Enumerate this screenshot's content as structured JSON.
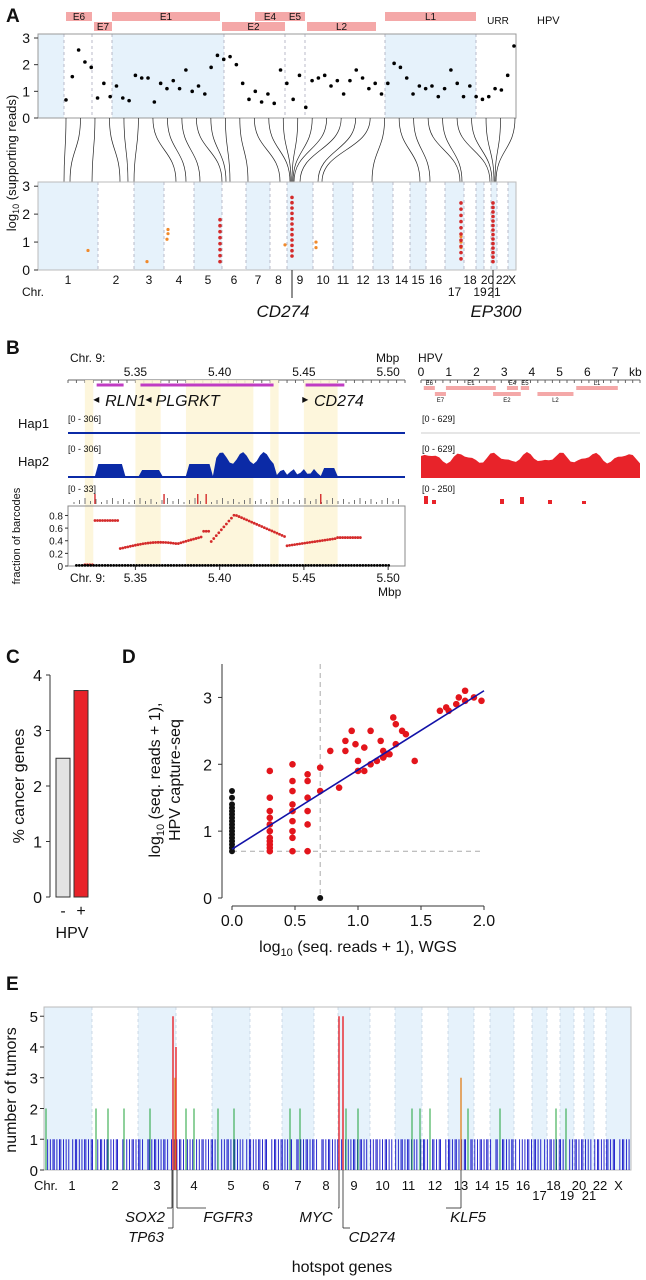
{
  "panels": {
    "a": "A",
    "b": "B",
    "c": "C",
    "d": "D",
    "e": "E"
  },
  "panel_a": {
    "hpv_label": "HPV",
    "hpv_genes": [
      {
        "name": "E6",
        "row": 0
      },
      {
        "name": "E7",
        "row": 1
      },
      {
        "name": "E1",
        "row": 0
      },
      {
        "name": "E4",
        "row": 0
      },
      {
        "name": "E2",
        "row": 1
      },
      {
        "name": "E5",
        "row": 0
      },
      {
        "name": "L2",
        "row": 1
      },
      {
        "name": "L1",
        "row": 0
      },
      {
        "name": "URR",
        "row": 1
      }
    ],
    "ylabel": "log10 (supporting reads)",
    "yticks": [
      "0",
      "1",
      "2",
      "3"
    ],
    "chr_prefix": "Chr.",
    "chromosomes": [
      "1",
      "2",
      "3",
      "4",
      "5",
      "6",
      "7",
      "8",
      "9",
      "10",
      "11",
      "12",
      "13",
      "14",
      "15",
      "16",
      "17",
      "18",
      "19",
      "20",
      "21",
      "22",
      "X"
    ],
    "genes": [
      "CD274",
      "EP300"
    ],
    "hpv_points_upper": [
      0.68,
      1.55,
      2.55,
      2.1,
      1.9,
      0.75,
      1.3,
      0.8,
      1.2,
      0.75,
      0.65,
      1.6,
      1.5,
      1.5,
      0.6,
      1.3,
      1.1,
      1.4,
      1.1,
      1.8,
      1.0,
      1.2,
      0.9,
      1.9,
      2.35,
      2.2,
      2.3,
      2.0,
      1.3,
      0.7,
      1.0,
      0.6,
      0.9,
      0.55,
      1.8,
      1.3,
      0.7,
      1.6,
      0.4,
      1.4,
      1.5,
      1.6,
      1.2,
      1.4,
      0.9,
      1.4,
      1.8,
      1.5,
      1.1,
      1.3,
      0.9,
      1.3,
      2.05,
      1.9,
      1.5,
      0.9,
      1.2,
      1.1,
      1.2,
      0.8,
      1.1,
      1.8,
      1.3,
      0.8,
      1.2,
      0.8,
      0.7,
      0.8,
      1.1,
      1.05,
      1.6,
      2.7
    ]
  },
  "panel_b": {
    "chr_label": "Chr. 9:",
    "mbp": "Mbp",
    "ticks": [
      "5.35",
      "5.40",
      "5.45",
      "5.50"
    ],
    "genes": [
      "RLN1",
      "PLGRKT",
      "CD274"
    ],
    "tracks": [
      "Hap1",
      "Hap2"
    ],
    "ranges": [
      "[0 - 306]",
      "[0 - 306]",
      "[0 - 33]"
    ],
    "hpv_label": "HPV",
    "kb": "kb",
    "hpv_ticks": [
      "0",
      "1",
      "2",
      "3",
      "4",
      "5",
      "6",
      "7"
    ],
    "hpv_genes": [
      "E6",
      "E7",
      "E1",
      "E2",
      "E4",
      "E5",
      "L2",
      "L1"
    ],
    "hpv_ranges": [
      "[0 - 629]",
      "[0 - 629]",
      "[0 - 250]"
    ],
    "ylabel": "fraction of barcodes",
    "yticks": [
      "0",
      "0.2",
      "0.4",
      "0.6",
      "0.8"
    ]
  },
  "panel_e_labels": {
    "ylabel": "number of tumors",
    "yticks": [
      "0",
      "1",
      "2",
      "3",
      "4",
      "5"
    ],
    "chr_prefix": "Chr.",
    "hotspot_genes": [
      "SOX2",
      "TP63",
      "FGFR3",
      "MYC",
      "CD274",
      "KLF5"
    ],
    "footer": "hotspot genes"
  },
  "chart_data": [
    {
      "type": "bar",
      "categories": [
        "-",
        "+"
      ],
      "values": [
        2.5,
        3.72
      ],
      "colors": [
        "#e3e3e3",
        "#e8232a"
      ],
      "ylabel": "% cancer genes",
      "xlabel": "HPV",
      "ylim": [
        0,
        4
      ],
      "yticks": [
        "0",
        "1",
        "2",
        "3",
        "4"
      ]
    },
    {
      "type": "scatter",
      "xlabel": "log10 (seq. reads + 1), WGS",
      "ylabel_lines": [
        "log10 (seq. reads + 1),",
        "HPV capture-seq"
      ],
      "xlim": [
        0,
        2
      ],
      "ylim": [
        0,
        3.5
      ],
      "xticks": [
        "0.0",
        "0.5",
        "1.0",
        "1.5",
        "2.0"
      ],
      "yticks": [
        "0",
        "1",
        "2",
        "3"
      ],
      "threshold": {
        "x": 0.7,
        "y": 0.7
      },
      "fit": {
        "x": [
          0,
          2
        ],
        "y": [
          0.73,
          3.1
        ]
      },
      "black_points": [
        [
          0,
          0.7
        ],
        [
          0,
          0.75
        ],
        [
          0,
          0.8
        ],
        [
          0,
          0.85
        ],
        [
          0,
          0.9
        ],
        [
          0,
          0.95
        ],
        [
          0,
          1.0
        ],
        [
          0,
          1.05
        ],
        [
          0,
          1.1
        ],
        [
          0,
          1.15
        ],
        [
          0,
          1.2
        ],
        [
          0,
          1.25
        ],
        [
          0,
          1.3
        ],
        [
          0,
          1.35
        ],
        [
          0,
          1.4
        ],
        [
          0,
          1.5
        ],
        [
          0,
          1.6
        ],
        [
          0.7,
          0.0
        ]
      ],
      "red_points": [
        [
          0.3,
          0.7
        ],
        [
          0.3,
          0.75
        ],
        [
          0.3,
          0.8
        ],
        [
          0.3,
          0.85
        ],
        [
          0.3,
          0.9
        ],
        [
          0.3,
          1.0
        ],
        [
          0.3,
          1.1
        ],
        [
          0.3,
          1.2
        ],
        [
          0.3,
          1.3
        ],
        [
          0.3,
          1.5
        ],
        [
          0.3,
          1.9
        ],
        [
          0.48,
          0.7
        ],
        [
          0.48,
          0.9
        ],
        [
          0.48,
          1.0
        ],
        [
          0.48,
          1.15
        ],
        [
          0.48,
          1.3
        ],
        [
          0.48,
          1.4
        ],
        [
          0.48,
          1.6
        ],
        [
          0.48,
          1.75
        ],
        [
          0.48,
          2.0
        ],
        [
          0.6,
          0.7
        ],
        [
          0.6,
          1.1
        ],
        [
          0.6,
          1.3
        ],
        [
          0.6,
          1.5
        ],
        [
          0.6,
          1.75
        ],
        [
          0.6,
          1.85
        ],
        [
          0.7,
          1.6
        ],
        [
          0.7,
          1.95
        ],
        [
          0.78,
          2.2
        ],
        [
          0.85,
          1.65
        ],
        [
          0.9,
          2.35
        ],
        [
          0.9,
          2.2
        ],
        [
          0.95,
          2.5
        ],
        [
          0.98,
          2.3
        ],
        [
          1.0,
          2.05
        ],
        [
          1.0,
          1.9
        ],
        [
          1.05,
          2.25
        ],
        [
          1.05,
          1.9
        ],
        [
          1.1,
          2.5
        ],
        [
          1.1,
          2.0
        ],
        [
          1.15,
          2.05
        ],
        [
          1.18,
          2.35
        ],
        [
          1.2,
          2.2
        ],
        [
          1.2,
          2.1
        ],
        [
          1.22,
          2.15
        ],
        [
          1.25,
          2.15
        ],
        [
          1.28,
          2.7
        ],
        [
          1.3,
          2.6
        ],
        [
          1.3,
          2.3
        ],
        [
          1.35,
          2.5
        ],
        [
          1.38,
          2.45
        ],
        [
          1.45,
          2.05
        ],
        [
          1.65,
          2.8
        ],
        [
          1.7,
          2.85
        ],
        [
          1.72,
          2.8
        ],
        [
          1.78,
          2.9
        ],
        [
          1.8,
          3.0
        ],
        [
          1.85,
          2.95
        ],
        [
          1.85,
          3.1
        ],
        [
          1.92,
          3.0
        ],
        [
          1.98,
          2.95
        ]
      ]
    },
    {
      "type": "bar",
      "title": "",
      "xlabel": "",
      "ylabel": "number of tumors",
      "ylim": [
        0,
        5
      ],
      "series": [
        {
          "color": "#1313c9",
          "values": [
            1
          ]
        },
        {
          "color": "#1fa33a",
          "values": [
            2
          ]
        },
        {
          "color": "#e8232a",
          "values": [
            5,
            4,
            5,
            5
          ]
        },
        {
          "color": "#e07d1a",
          "values": [
            3
          ]
        }
      ]
    }
  ],
  "colors": {
    "blue_shade": "#e6f2fb",
    "pink": "#f4a8a8",
    "red": "#d42b2b",
    "dark_red": "#a0102a",
    "orange": "#f08a2c",
    "magenta": "#c03cc3",
    "navy": "#0b2aa6",
    "bar_red": "#e8232a",
    "fit": "#1212a8"
  }
}
